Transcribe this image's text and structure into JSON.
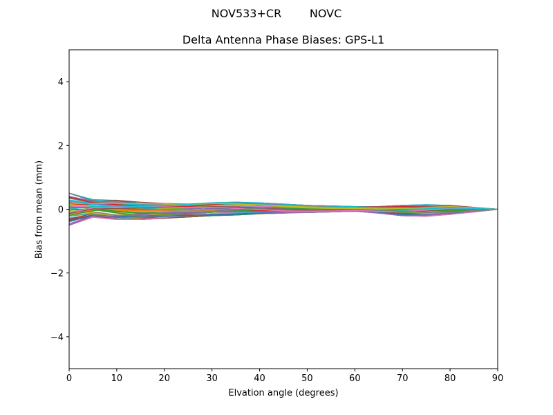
{
  "chart_data": {
    "type": "line",
    "suptitle": "NOV533+CR        NOVC",
    "title": "Delta Antenna Phase Biases: GPS-L1",
    "xlabel": "Elvation angle (degrees)",
    "ylabel": "Bias from mean (mm)",
    "xlim": [
      0,
      90
    ],
    "ylim": [
      -5,
      5
    ],
    "xticks": [
      0,
      10,
      20,
      30,
      40,
      50,
      60,
      70,
      80,
      90
    ],
    "yticks": [
      -4,
      -2,
      0,
      2,
      4
    ],
    "ytick_labels": [
      "−4",
      "−2",
      "0",
      "2",
      "4"
    ],
    "grid": false,
    "legend": null,
    "x": [
      0,
      5,
      10,
      15,
      20,
      25,
      30,
      35,
      40,
      45,
      50,
      55,
      60,
      65,
      70,
      75,
      80,
      85,
      90
    ],
    "envelope": {
      "upper": [
        0.5,
        0.3,
        0.28,
        0.22,
        0.18,
        0.16,
        0.2,
        0.22,
        0.2,
        0.16,
        0.12,
        0.1,
        0.08,
        0.08,
        0.12,
        0.14,
        0.12,
        0.06,
        0.0
      ],
      "lower": [
        -0.5,
        -0.25,
        -0.32,
        -0.32,
        -0.28,
        -0.24,
        -0.2,
        -0.18,
        -0.14,
        -0.12,
        -0.1,
        -0.08,
        -0.06,
        -0.12,
        -0.2,
        -0.22,
        -0.16,
        -0.08,
        0.0
      ]
    },
    "series_note": "Many overlapping series (approx. 60 satellites/curves) converging to 0 at 90 degrees",
    "series_count": 60,
    "colors": [
      "#1f77b4",
      "#ff7f0e",
      "#2ca02c",
      "#d62728",
      "#9467bd",
      "#8c564b",
      "#e377c2",
      "#7f7f7f",
      "#bcbd22",
      "#17becf"
    ]
  }
}
